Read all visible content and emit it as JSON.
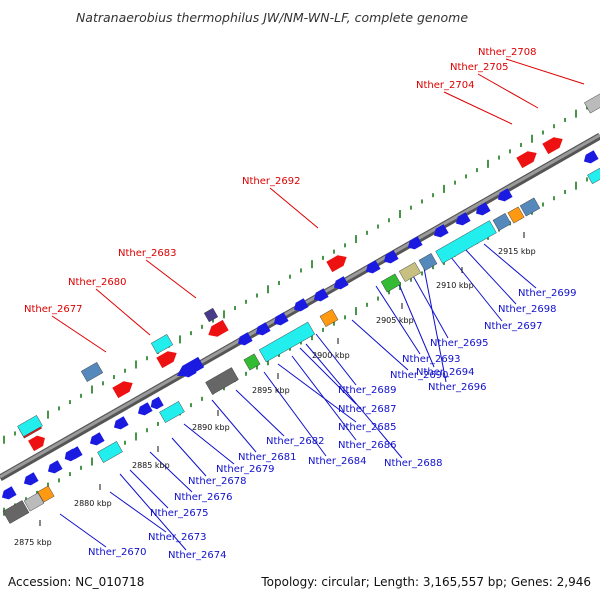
{
  "title": "Natranaerobius thermophilus JW/NM-WN-LF, complete genome",
  "footer": {
    "accession": "Accession: NC_010718",
    "summary": "Topology: circular; Length: 3,165,557 bp; Genes: 2,946"
  },
  "colors": {
    "backbone": "#808080",
    "dots": "#1a7a1a",
    "red_gene": "#ee1111",
    "blue_gene": "#1a1ae0",
    "cyan_gene": "#22eeee",
    "steelblue_gene": "#5588bb",
    "green_gene": "#33bb33",
    "gray_gene": "#666666",
    "lightgray_gene": "#bbbbbb",
    "orange_gene": "#ff9911",
    "khaki_gene": "#c8c080",
    "purple_gene": "#4a3a8a",
    "red_label": "#dd0000",
    "blue_label": "#1010cc"
  },
  "ticks": [
    "2875 kbp",
    "2880 kbp",
    "2885 kbp",
    "2890 kbp",
    "2895 kbp",
    "2900 kbp",
    "2905 kbp",
    "2910 kbp",
    "2915 kbp"
  ],
  "red_labels": [
    "Nther_2677",
    "Nther_2680",
    "Nther_2683",
    "Nther_2692",
    "Nther_2704",
    "Nther_2705",
    "Nther_2708"
  ],
  "blue_labels": [
    "Nther_2670",
    "Nther_2673",
    "Nther_2674",
    "Nther_2675",
    "Nther_2676",
    "Nther_2678",
    "Nther_2679",
    "Nther_2681",
    "Nther_2682",
    "Nther_2684",
    "Nther_2685",
    "Nther_2686",
    "Nther_2687",
    "Nther_2688",
    "Nther_2689",
    "Nther_2690",
    "Nther_2693",
    "Nther_2694",
    "Nther_2695",
    "Nther_2696",
    "Nther_2697",
    "Nther_2698",
    "Nther_2699"
  ]
}
